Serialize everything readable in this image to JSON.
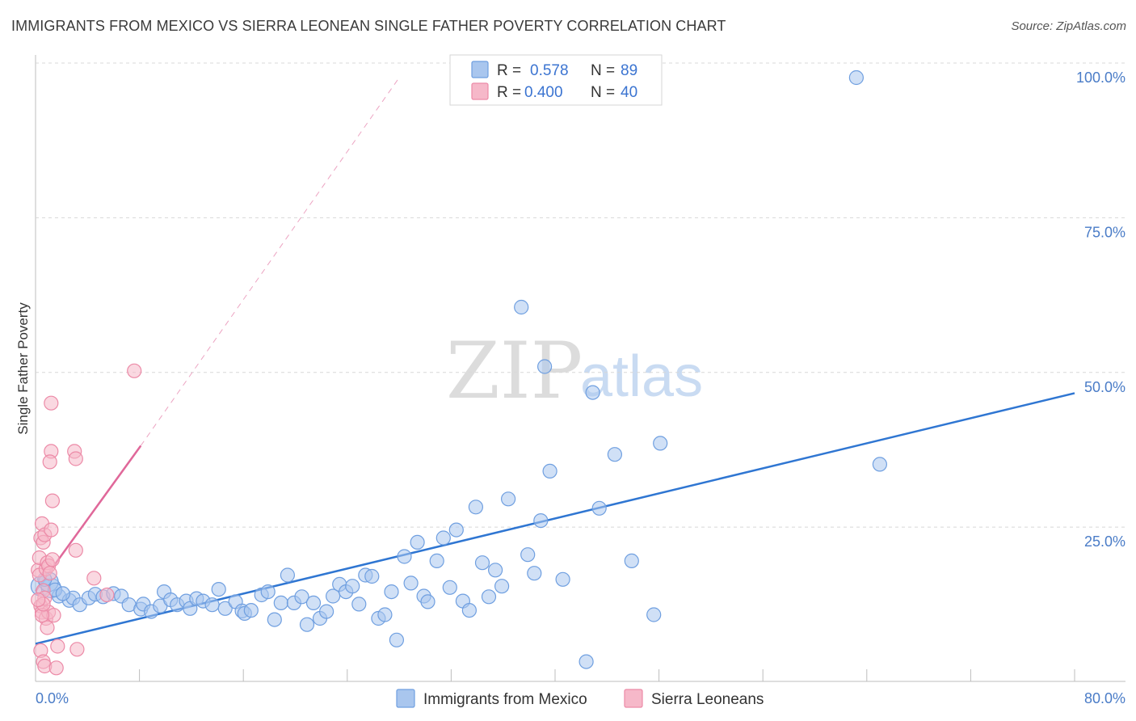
{
  "title": "IMMIGRANTS FROM MEXICO VS SIERRA LEONEAN SINGLE FATHER POVERTY CORRELATION CHART",
  "source": "Source: ZipAtlas.com",
  "watermark": {
    "zip": "ZIP",
    "atlas": "atlas"
  },
  "colors": {
    "blue_fill": "#a9c6ee",
    "blue_stroke": "#6f9fe0",
    "blue_line": "#2f76d2",
    "pink_fill": "#f6b8c9",
    "pink_stroke": "#ec8aa7",
    "pink_line": "#e0689a",
    "grid": "#d8d8d8",
    "tick_text": "#4a7cc7"
  },
  "legend": {
    "r_label": "R =",
    "n_label": "N =",
    "series": [
      {
        "r": "0.578",
        "n": "89"
      },
      {
        "r": "0.400",
        "n": "40"
      }
    ]
  },
  "chart_data": {
    "type": "scatter",
    "title": "IMMIGRANTS FROM MEXICO VS SIERRA LEONEAN SINGLE FATHER POVERTY CORRELATION CHART",
    "xlabel": "",
    "ylabel": "Single Father Poverty",
    "xlim": [
      0,
      80
    ],
    "ylim": [
      0,
      102
    ],
    "x_tick_labels": [
      "0.0%",
      "80.0%"
    ],
    "y_ticks": [
      25,
      50,
      75,
      100
    ],
    "y_tick_labels": [
      "25.0%",
      "50.0%",
      "75.0%",
      "100.0%"
    ],
    "grid": true,
    "legend_position": "top-center",
    "series": [
      {
        "name": "Immigrants from Mexico",
        "color": "blue",
        "r": 0.578,
        "n": 89,
        "trend": {
          "x0": 0,
          "y0": 8.5,
          "x1": 80,
          "y1": 49
        },
        "points": [
          [
            0.4,
            17.8
          ],
          [
            1.2,
            17.5
          ],
          [
            1.0,
            18.5
          ],
          [
            1.8,
            16.2
          ],
          [
            2.6,
            15.5
          ],
          [
            2.9,
            15.9
          ],
          [
            3.4,
            14.8
          ],
          [
            4.1,
            15.9
          ],
          [
            4.6,
            16.5
          ],
          [
            5.2,
            16.1
          ],
          [
            6.0,
            16.6
          ],
          [
            6.6,
            16.2
          ],
          [
            7.2,
            14.8
          ],
          [
            8.1,
            14.1
          ],
          [
            8.3,
            14.9
          ],
          [
            8.9,
            13.7
          ],
          [
            9.6,
            14.6
          ],
          [
            9.9,
            16.9
          ],
          [
            10.4,
            15.6
          ],
          [
            10.9,
            14.8
          ],
          [
            11.6,
            15.4
          ],
          [
            11.9,
            14.2
          ],
          [
            12.4,
            15.8
          ],
          [
            12.9,
            15.4
          ],
          [
            13.6,
            14.8
          ],
          [
            14.1,
            17.3
          ],
          [
            14.6,
            14.2
          ],
          [
            15.4,
            15.3
          ],
          [
            15.9,
            13.8
          ],
          [
            16.1,
            13.4
          ],
          [
            16.6,
            13.9
          ],
          [
            17.4,
            16.4
          ],
          [
            17.9,
            16.9
          ],
          [
            18.4,
            12.4
          ],
          [
            18.9,
            15.1
          ],
          [
            19.4,
            19.6
          ],
          [
            19.9,
            15.1
          ],
          [
            20.5,
            16.1
          ],
          [
            20.9,
            11.6
          ],
          [
            21.4,
            15.1
          ],
          [
            21.9,
            12.6
          ],
          [
            22.4,
            13.7
          ],
          [
            22.9,
            16.2
          ],
          [
            23.4,
            18.1
          ],
          [
            23.9,
            16.9
          ],
          [
            24.4,
            17.8
          ],
          [
            24.9,
            14.9
          ],
          [
            25.4,
            19.6
          ],
          [
            25.9,
            19.4
          ],
          [
            26.4,
            12.6
          ],
          [
            26.9,
            13.2
          ],
          [
            27.4,
            16.9
          ],
          [
            27.8,
            9.1
          ],
          [
            28.4,
            22.6
          ],
          [
            28.9,
            18.3
          ],
          [
            29.4,
            24.9
          ],
          [
            29.9,
            16.2
          ],
          [
            30.2,
            15.3
          ],
          [
            30.9,
            21.9
          ],
          [
            31.4,
            25.6
          ],
          [
            31.9,
            17.6
          ],
          [
            32.4,
            26.9
          ],
          [
            32.9,
            15.4
          ],
          [
            33.4,
            13.9
          ],
          [
            33.9,
            30.6
          ],
          [
            34.4,
            21.6
          ],
          [
            34.9,
            16.1
          ],
          [
            35.4,
            20.4
          ],
          [
            35.9,
            17.8
          ],
          [
            36.4,
            31.9
          ],
          [
            37.4,
            62.9
          ],
          [
            37.9,
            22.9
          ],
          [
            38.4,
            19.9
          ],
          [
            38.9,
            28.4
          ],
          [
            39.2,
            53.3
          ],
          [
            39.6,
            36.4
          ],
          [
            40.6,
            18.9
          ],
          [
            42.4,
            5.6
          ],
          [
            42.9,
            49.1
          ],
          [
            43.4,
            30.4
          ],
          [
            44.6,
            39.1
          ],
          [
            45.9,
            21.9
          ],
          [
            47.6,
            13.2
          ],
          [
            48.1,
            40.9
          ],
          [
            63.2,
            100.0
          ],
          [
            65.0,
            37.5
          ],
          [
            1.5,
            17.2
          ],
          [
            0.7,
            18.9
          ],
          [
            2.1,
            16.6
          ]
        ]
      },
      {
        "name": "Sierra Leoneans",
        "color": "pink",
        "r": 0.4,
        "n": 40,
        "trend": {
          "x0": 0,
          "y0": 17.0,
          "x1": 8.1,
          "y1": 40.5,
          "dashed_to": {
            "x": 28,
            "y": 100
          }
        },
        "points": [
          [
            0.2,
            20.4
          ],
          [
            0.3,
            19.6
          ],
          [
            0.4,
            14.6
          ],
          [
            0.5,
            13.6
          ],
          [
            0.6,
            17.1
          ],
          [
            0.7,
            15.9
          ],
          [
            0.8,
            12.6
          ],
          [
            0.9,
            11.1
          ],
          [
            1.0,
            13.6
          ],
          [
            0.3,
            22.4
          ],
          [
            0.4,
            25.6
          ],
          [
            0.5,
            27.9
          ],
          [
            0.6,
            24.9
          ],
          [
            0.7,
            26.1
          ],
          [
            0.8,
            20.6
          ],
          [
            0.9,
            21.6
          ],
          [
            1.0,
            21.1
          ],
          [
            1.1,
            19.9
          ],
          [
            1.3,
            31.6
          ],
          [
            1.2,
            26.9
          ],
          [
            1.2,
            39.6
          ],
          [
            1.1,
            37.9
          ],
          [
            1.2,
            47.4
          ],
          [
            1.4,
            13.1
          ],
          [
            1.7,
            8.1
          ],
          [
            0.4,
            7.4
          ],
          [
            0.6,
            5.6
          ],
          [
            0.7,
            4.9
          ],
          [
            1.6,
            4.6
          ],
          [
            0.5,
            13.1
          ],
          [
            0.6,
            14.9
          ],
          [
            3.0,
            39.6
          ],
          [
            3.1,
            38.4
          ],
          [
            3.1,
            23.6
          ],
          [
            3.2,
            7.6
          ],
          [
            4.5,
            19.1
          ],
          [
            5.5,
            16.4
          ],
          [
            7.6,
            52.6
          ],
          [
            1.3,
            22.1
          ],
          [
            0.2,
            15.6
          ]
        ]
      }
    ]
  }
}
